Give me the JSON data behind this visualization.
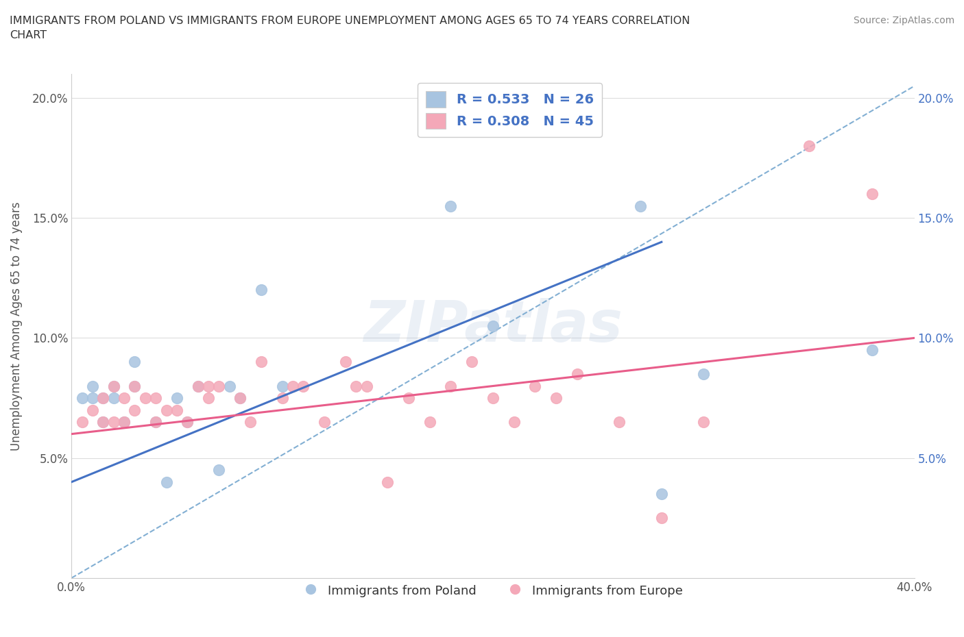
{
  "title": "IMMIGRANTS FROM POLAND VS IMMIGRANTS FROM EUROPE UNEMPLOYMENT AMONG AGES 65 TO 74 YEARS CORRELATION\nCHART",
  "source": "Source: ZipAtlas.com",
  "xlabel": "",
  "ylabel": "Unemployment Among Ages 65 to 74 years",
  "xlim": [
    0.0,
    0.4
  ],
  "ylim": [
    0.0,
    0.21
  ],
  "xticks": [
    0.0,
    0.05,
    0.1,
    0.15,
    0.2,
    0.25,
    0.3,
    0.35,
    0.4
  ],
  "xticklabels": [
    "0.0%",
    "",
    "",
    "",
    "",
    "",
    "",
    "",
    "40.0%"
  ],
  "yticks": [
    0.0,
    0.05,
    0.1,
    0.15,
    0.2
  ],
  "yticklabels": [
    "",
    "5.0%",
    "10.0%",
    "15.0%",
    "20.0%"
  ],
  "poland_R": 0.533,
  "poland_N": 26,
  "europe_R": 0.308,
  "europe_N": 45,
  "poland_color": "#a8c4e0",
  "europe_color": "#f4a8b8",
  "poland_line_color": "#4472c4",
  "europe_line_color": "#e85d8a",
  "trend_line_color": "#aaaaaa",
  "trend_line_dashed_color": "#82afd3",
  "background_color": "#ffffff",
  "poland_scatter_x": [
    0.005,
    0.01,
    0.01,
    0.015,
    0.015,
    0.02,
    0.02,
    0.025,
    0.03,
    0.03,
    0.04,
    0.045,
    0.05,
    0.055,
    0.06,
    0.07,
    0.075,
    0.08,
    0.09,
    0.1,
    0.18,
    0.2,
    0.27,
    0.28,
    0.3,
    0.38
  ],
  "poland_scatter_y": [
    0.075,
    0.075,
    0.08,
    0.075,
    0.065,
    0.075,
    0.08,
    0.065,
    0.08,
    0.09,
    0.065,
    0.04,
    0.075,
    0.065,
    0.08,
    0.045,
    0.08,
    0.075,
    0.12,
    0.08,
    0.155,
    0.105,
    0.155,
    0.035,
    0.085,
    0.095
  ],
  "europe_scatter_x": [
    0.005,
    0.01,
    0.015,
    0.015,
    0.02,
    0.02,
    0.025,
    0.025,
    0.03,
    0.03,
    0.035,
    0.04,
    0.04,
    0.045,
    0.05,
    0.055,
    0.06,
    0.065,
    0.065,
    0.07,
    0.08,
    0.085,
    0.09,
    0.1,
    0.105,
    0.11,
    0.12,
    0.13,
    0.135,
    0.14,
    0.15,
    0.16,
    0.17,
    0.18,
    0.19,
    0.2,
    0.21,
    0.22,
    0.23,
    0.24,
    0.26,
    0.28,
    0.3,
    0.35,
    0.38
  ],
  "europe_scatter_y": [
    0.065,
    0.07,
    0.075,
    0.065,
    0.08,
    0.065,
    0.075,
    0.065,
    0.07,
    0.08,
    0.075,
    0.075,
    0.065,
    0.07,
    0.07,
    0.065,
    0.08,
    0.08,
    0.075,
    0.08,
    0.075,
    0.065,
    0.09,
    0.075,
    0.08,
    0.08,
    0.065,
    0.09,
    0.08,
    0.08,
    0.04,
    0.075,
    0.065,
    0.08,
    0.09,
    0.075,
    0.065,
    0.08,
    0.075,
    0.085,
    0.065,
    0.025,
    0.065,
    0.18,
    0.16
  ],
  "poland_line_x0": 0.0,
  "poland_line_y0": 0.04,
  "poland_line_x1": 0.28,
  "poland_line_y1": 0.14,
  "europe_line_x0": 0.0,
  "europe_line_y0": 0.06,
  "europe_line_x1": 0.4,
  "europe_line_y1": 0.1,
  "dash_line_x0": 0.0,
  "dash_line_y0": 0.0,
  "dash_line_x1": 0.4,
  "dash_line_y1": 0.205
}
